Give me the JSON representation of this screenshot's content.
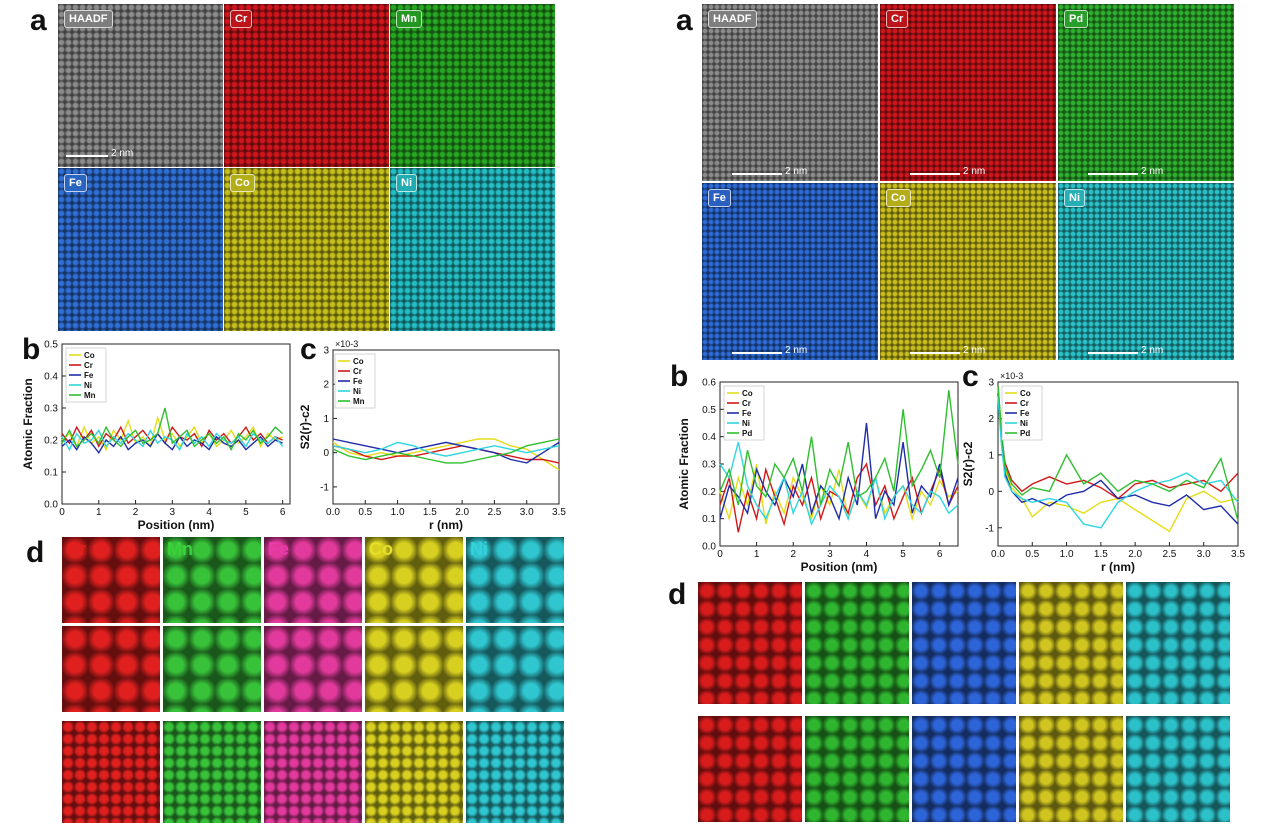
{
  "left_figure": {
    "panel_a_letter": "a",
    "panel_b_letter": "b",
    "panel_c_letter": "c",
    "panel_d_letter": "d",
    "maps": [
      {
        "label": "HAADF",
        "color": "#8c8c8c"
      },
      {
        "label": "Cr",
        "color": "#d0161c"
      },
      {
        "label": "Mn",
        "color": "#27a822"
      },
      {
        "label": "Fe",
        "color": "#2f6fd6"
      },
      {
        "label": "Co",
        "color": "#c7c01a"
      },
      {
        "label": "Ni",
        "color": "#23bfc5"
      }
    ],
    "scale_bar": "2 nm",
    "d_labels": [
      {
        "label": "Cr",
        "color": "#e0201f"
      },
      {
        "label": "Mn",
        "color": "#3ad13a"
      },
      {
        "label": "Fe",
        "color": "#e83aa8"
      },
      {
        "label": "Co",
        "color": "#e6df2a"
      },
      {
        "label": "Ni",
        "color": "#34d2dc"
      }
    ],
    "d_tile_colors": [
      "#e0201f",
      "#38c23a",
      "#e23a9c",
      "#d8d020",
      "#2fc6cf"
    ]
  },
  "right_figure": {
    "panel_a_letter": "a",
    "panel_b_letter": "b",
    "panel_c_letter": "c",
    "panel_d_letter": "d",
    "maps": [
      {
        "label": "HAADF",
        "color": "#8c8c8c"
      },
      {
        "label": "Cr",
        "color": "#d0161c"
      },
      {
        "label": "Pd",
        "color": "#2fb02f"
      },
      {
        "label": "Fe",
        "color": "#2d6bd8"
      },
      {
        "label": "Co",
        "color": "#c9bf1c"
      },
      {
        "label": "Ni",
        "color": "#2ac2c9"
      }
    ],
    "scale_bar": "2 nm",
    "d_tile_colors": [
      "#d81c1c",
      "#2fb52f",
      "#2d64d8",
      "#d0c520",
      "#2cc0c8"
    ]
  },
  "chart_data": [
    {
      "id": "left_b",
      "type": "line",
      "xlabel": "Position (nm)",
      "ylabel": "Atomic Fraction",
      "xlim": [
        0,
        6.2
      ],
      "ylim": [
        0,
        0.5
      ],
      "xticks": [
        "0",
        "1",
        "2",
        "3",
        "4",
        "5",
        "6"
      ],
      "yticks": [
        "0.0",
        "0.1",
        "0.2",
        "0.3",
        "0.4",
        "0.5"
      ],
      "legend": "top-left",
      "x": [
        0,
        0.2,
        0.4,
        0.6,
        0.8,
        1.0,
        1.2,
        1.4,
        1.6,
        1.8,
        2.0,
        2.2,
        2.4,
        2.6,
        2.8,
        3.0,
        3.2,
        3.4,
        3.6,
        3.8,
        4.0,
        4.2,
        4.4,
        4.6,
        4.8,
        5.0,
        5.2,
        5.4,
        5.6,
        5.8,
        6.0
      ],
      "series": [
        {
          "name": "Co",
          "color": "#e5dc1a",
          "values": [
            0.2,
            0.22,
            0.18,
            0.24,
            0.19,
            0.21,
            0.17,
            0.23,
            0.2,
            0.26,
            0.19,
            0.21,
            0.18,
            0.27,
            0.2,
            0.22,
            0.18,
            0.21,
            0.24,
            0.19,
            0.22,
            0.18,
            0.2,
            0.23,
            0.19,
            0.21,
            0.24,
            0.18,
            0.22,
            0.2,
            0.21
          ]
        },
        {
          "name": "Cr",
          "color": "#d21919",
          "values": [
            0.22,
            0.19,
            0.24,
            0.2,
            0.23,
            0.18,
            0.22,
            0.2,
            0.24,
            0.19,
            0.21,
            0.23,
            0.2,
            0.22,
            0.19,
            0.24,
            0.21,
            0.2,
            0.22,
            0.18,
            0.23,
            0.2,
            0.22,
            0.19,
            0.21,
            0.24,
            0.2,
            0.22,
            0.19,
            0.21,
            0.2
          ]
        },
        {
          "name": "Fe",
          "color": "#1f2da8",
          "values": [
            0.18,
            0.2,
            0.17,
            0.21,
            0.19,
            0.16,
            0.2,
            0.18,
            0.21,
            0.17,
            0.19,
            0.2,
            0.18,
            0.22,
            0.19,
            0.17,
            0.21,
            0.18,
            0.2,
            0.19,
            0.17,
            0.21,
            0.19,
            0.18,
            0.2,
            0.17,
            0.19,
            0.21,
            0.18,
            0.2,
            0.19
          ]
        },
        {
          "name": "Ni",
          "color": "#2fd6e0",
          "values": [
            0.21,
            0.17,
            0.22,
            0.19,
            0.2,
            0.23,
            0.18,
            0.21,
            0.19,
            0.22,
            0.2,
            0.18,
            0.23,
            0.19,
            0.21,
            0.2,
            0.17,
            0.22,
            0.19,
            0.21,
            0.18,
            0.22,
            0.2,
            0.19,
            0.21,
            0.18,
            0.22,
            0.2,
            0.19,
            0.21,
            0.18
          ]
        },
        {
          "name": "Mn",
          "color": "#2fbf2f",
          "values": [
            0.19,
            0.23,
            0.18,
            0.2,
            0.22,
            0.19,
            0.24,
            0.2,
            0.18,
            0.21,
            0.23,
            0.19,
            0.2,
            0.22,
            0.3,
            0.19,
            0.21,
            0.23,
            0.18,
            0.2,
            0.22,
            0.19,
            0.21,
            0.17,
            0.22,
            0.2,
            0.23,
            0.19,
            0.21,
            0.24,
            0.22
          ]
        }
      ]
    },
    {
      "id": "left_c",
      "type": "line",
      "xlabel": "r (nm)",
      "ylabel": "S2(r)-c2",
      "exponent_label": "×10-3",
      "xlim": [
        0,
        3.5
      ],
      "ylim": [
        -1.5,
        3
      ],
      "xticks": [
        "0.0",
        "0.5",
        "1.0",
        "1.5",
        "2.0",
        "2.5",
        "3.0",
        "3.5"
      ],
      "yticks": [
        "-1",
        "0",
        "1",
        "2",
        "3"
      ],
      "legend": "top-center",
      "x": [
        0,
        0.25,
        0.5,
        0.75,
        1.0,
        1.25,
        1.5,
        1.75,
        2.0,
        2.25,
        2.5,
        2.75,
        3.0,
        3.25,
        3.5
      ],
      "series": [
        {
          "name": "Co",
          "color": "#e5dc1a",
          "values": [
            0.3,
            0.0,
            -0.1,
            0.0,
            -0.1,
            0.0,
            0.1,
            0.2,
            0.3,
            0.4,
            0.4,
            0.2,
            0.1,
            -0.2,
            -0.5
          ]
        },
        {
          "name": "Cr",
          "color": "#d21919",
          "values": [
            0.2,
            0.1,
            -0.1,
            -0.2,
            -0.1,
            -0.1,
            0.0,
            0.1,
            0.2,
            0.1,
            0.0,
            -0.1,
            -0.2,
            -0.2,
            -0.3
          ]
        },
        {
          "name": "Fe",
          "color": "#1f2da8",
          "values": [
            0.4,
            0.3,
            0.2,
            0.1,
            0.0,
            0.1,
            0.2,
            0.3,
            0.2,
            0.1,
            0.0,
            -0.2,
            -0.3,
            0.0,
            0.3
          ]
        },
        {
          "name": "Ni",
          "color": "#2fd6e0",
          "values": [
            0.2,
            0.1,
            0.0,
            0.1,
            0.3,
            0.2,
            0.0,
            -0.1,
            0.0,
            0.1,
            0.2,
            0.1,
            0.0,
            0.1,
            0.2
          ]
        },
        {
          "name": "Mn",
          "color": "#2fbf2f",
          "values": [
            0.1,
            -0.1,
            -0.2,
            -0.1,
            0.0,
            -0.1,
            -0.2,
            -0.3,
            -0.3,
            -0.2,
            -0.1,
            0.0,
            0.2,
            0.3,
            0.4
          ]
        }
      ]
    },
    {
      "id": "right_b",
      "type": "line",
      "xlabel": "Position (nm)",
      "ylabel": "Atomic Fraction",
      "xlim": [
        0,
        6.5
      ],
      "ylim": [
        0,
        0.6
      ],
      "xticks": [
        "0",
        "1",
        "2",
        "3",
        "4",
        "5",
        "6"
      ],
      "yticks": [
        "0.0",
        "0.1",
        "0.2",
        "0.3",
        "0.4",
        "0.5",
        "0.6"
      ],
      "legend": "top-left",
      "x": [
        0,
        0.25,
        0.5,
        0.75,
        1.0,
        1.25,
        1.5,
        1.75,
        2.0,
        2.25,
        2.5,
        2.75,
        3.0,
        3.25,
        3.5,
        3.75,
        4.0,
        4.25,
        4.5,
        4.75,
        5.0,
        5.25,
        5.5,
        5.75,
        6.0,
        6.25,
        6.5
      ],
      "series": [
        {
          "name": "Co",
          "color": "#e5dc1a",
          "values": [
            0.2,
            0.1,
            0.25,
            0.15,
            0.3,
            0.08,
            0.2,
            0.12,
            0.25,
            0.18,
            0.1,
            0.22,
            0.15,
            0.28,
            0.1,
            0.2,
            0.14,
            0.25,
            0.12,
            0.18,
            0.22,
            0.1,
            0.2,
            0.15,
            0.24,
            0.18,
            0.2
          ]
        },
        {
          "name": "Cr",
          "color": "#d21919",
          "values": [
            0.15,
            0.25,
            0.05,
            0.2,
            0.1,
            0.28,
            0.18,
            0.08,
            0.22,
            0.15,
            0.25,
            0.1,
            0.2,
            0.18,
            0.12,
            0.25,
            0.3,
            0.15,
            0.22,
            0.1,
            0.18,
            0.25,
            0.12,
            0.2,
            0.28,
            0.15,
            0.22
          ]
        },
        {
          "name": "Fe",
          "color": "#1f2da8",
          "values": [
            0.1,
            0.22,
            0.18,
            0.12,
            0.28,
            0.2,
            0.15,
            0.25,
            0.18,
            0.3,
            0.12,
            0.22,
            0.18,
            0.1,
            0.25,
            0.15,
            0.45,
            0.1,
            0.2,
            0.15,
            0.38,
            0.12,
            0.22,
            0.18,
            0.3,
            0.15,
            0.25
          ]
        },
        {
          "name": "Ni",
          "color": "#2fd6e0",
          "values": [
            0.3,
            0.25,
            0.38,
            0.22,
            0.15,
            0.1,
            0.18,
            0.25,
            0.12,
            0.2,
            0.08,
            0.15,
            0.22,
            0.18,
            0.1,
            0.2,
            0.15,
            0.25,
            0.1,
            0.18,
            0.22,
            0.15,
            0.12,
            0.2,
            0.18,
            0.12,
            0.15
          ]
        },
        {
          "name": "Pd",
          "color": "#2fbf2f",
          "values": [
            0.2,
            0.28,
            0.15,
            0.35,
            0.22,
            0.18,
            0.3,
            0.25,
            0.32,
            0.2,
            0.4,
            0.15,
            0.28,
            0.22,
            0.38,
            0.18,
            0.2,
            0.25,
            0.32,
            0.2,
            0.5,
            0.22,
            0.28,
            0.35,
            0.25,
            0.57,
            0.3
          ]
        }
      ]
    },
    {
      "id": "right_c",
      "type": "line",
      "xlabel": "r (nm)",
      "ylabel": "S2(r)-c2",
      "exponent_label": "×10-3",
      "xlim": [
        0,
        3.5
      ],
      "ylim": [
        -1.5,
        3
      ],
      "xticks": [
        "0.0",
        "0.5",
        "1.0",
        "1.5",
        "2.0",
        "2.5",
        "3.0",
        "3.5"
      ],
      "yticks": [
        "-1",
        "0",
        "1",
        "2",
        "3"
      ],
      "legend": "top-left",
      "x": [
        0,
        0.05,
        0.1,
        0.2,
        0.35,
        0.5,
        0.75,
        1.0,
        1.25,
        1.5,
        1.75,
        2.0,
        2.25,
        2.5,
        2.75,
        3.0,
        3.25,
        3.5
      ],
      "series": [
        {
          "name": "Co",
          "color": "#e5dc1a",
          "values": [
            2.8,
            1.5,
            0.6,
            0.1,
            -0.2,
            -0.7,
            -0.3,
            -0.4,
            -0.6,
            -0.3,
            -0.2,
            -0.5,
            -0.8,
            -1.1,
            -0.2,
            0.0,
            -0.3,
            -0.2
          ]
        },
        {
          "name": "Cr",
          "color": "#d21919",
          "values": [
            2.9,
            1.6,
            0.8,
            0.3,
            0.0,
            0.2,
            0.4,
            0.2,
            0.3,
            0.1,
            -0.2,
            0.2,
            0.3,
            0.1,
            0.2,
            0.3,
            0.0,
            0.5
          ]
        },
        {
          "name": "Fe",
          "color": "#1f2da8",
          "values": [
            2.7,
            1.4,
            0.5,
            0.0,
            -0.3,
            -0.2,
            -0.4,
            -0.1,
            0.0,
            0.3,
            -0.2,
            -0.1,
            -0.3,
            -0.4,
            -0.1,
            -0.5,
            -0.4,
            -0.9
          ]
        },
        {
          "name": "Ni",
          "color": "#2fd6e0",
          "values": [
            2.6,
            1.3,
            0.4,
            0.0,
            -0.2,
            -0.3,
            -0.2,
            -0.3,
            -0.9,
            -1.0,
            -0.3,
            0.0,
            0.2,
            0.3,
            0.5,
            0.2,
            0.3,
            -0.3
          ]
        },
        {
          "name": "Pd",
          "color": "#2fbf2f",
          "values": [
            2.9,
            1.7,
            0.7,
            0.2,
            -0.1,
            0.1,
            0.0,
            1.0,
            0.2,
            0.5,
            0.0,
            0.3,
            0.2,
            0.0,
            0.3,
            0.1,
            0.9,
            -0.8
          ]
        }
      ]
    }
  ]
}
